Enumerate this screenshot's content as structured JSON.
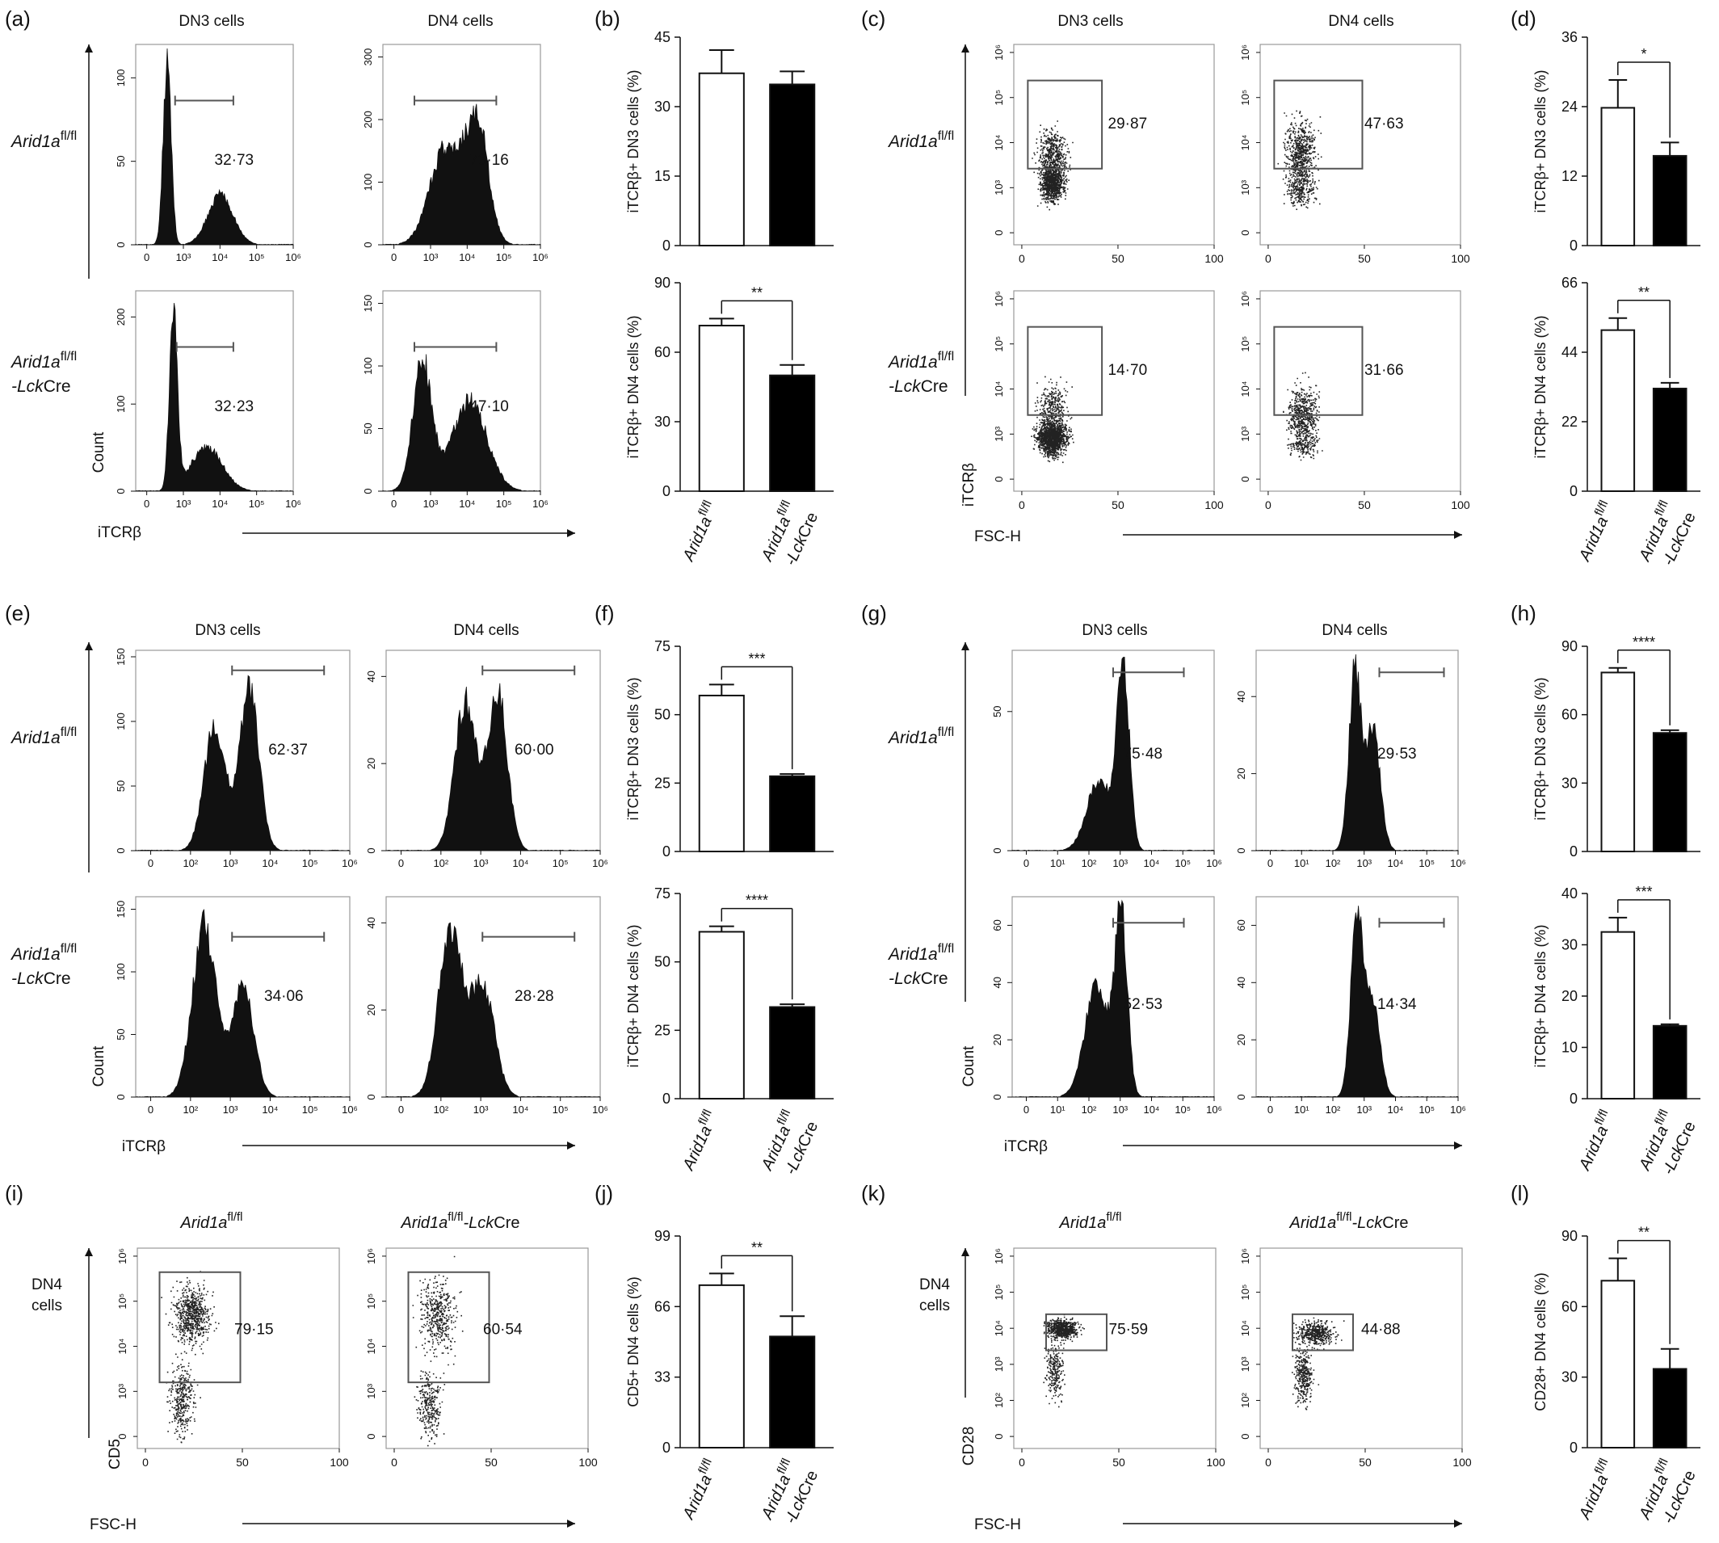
{
  "figure": {
    "panel_letters": [
      "(a)",
      "(b)",
      "(c)",
      "(d)",
      "(e)",
      "(f)",
      "(g)",
      "(h)",
      "(i)",
      "(j)",
      "(k)",
      "(l)"
    ],
    "groups": {
      "wt": {
        "main": "Arid1a",
        "sup": "fl/fl",
        "suffix": ""
      },
      "ko": {
        "main": "Arid1a",
        "sup": "fl/fl",
        "line2_italic": "-Lck",
        "line2": "Cre"
      }
    },
    "axis_labels": {
      "count": "Count",
      "itcrb": "iTCRβ",
      "fsch": "FSC-H",
      "cd5": "CD5",
      "cd28": "CD28",
      "dn4_cells_line1": "DN4",
      "dn4_cells_line2": "cells"
    },
    "column_titles": {
      "dn3": "DN3 cells",
      "dn4": "DN4 cells"
    },
    "colors": {
      "wt_bar": "#ffffff",
      "ko_bar": "#000000",
      "gate": "#555555",
      "histogram": "#111111"
    }
  },
  "chart_data": [
    {
      "id": "a",
      "type": "histogram",
      "columns": [
        "DN3 cells",
        "DN4 cells"
      ],
      "x_ticks": [
        "0",
        "10³",
        "10⁴",
        "10⁵",
        "10⁶"
      ],
      "plots": [
        {
          "col": "DN3 cells",
          "row": "Arid1afl/fl",
          "gate_pct": "32·73",
          "y_ticks": [
            "0",
            "50",
            "100"
          ],
          "ymax": 120
        },
        {
          "col": "DN4 cells",
          "row": "Arid1afl/fl",
          "gate_pct": "73·16",
          "y_ticks": [
            "0",
            "100",
            "200",
            "300"
          ],
          "ymax": 320
        },
        {
          "col": "DN3 cells",
          "row": "Arid1afl/fl-LckCre",
          "gate_pct": "32·23",
          "y_ticks": [
            "0",
            "100",
            "200"
          ],
          "ymax": 230
        },
        {
          "col": "DN4 cells",
          "row": "Arid1afl/fl-LckCre",
          "gate_pct": "47·10",
          "y_ticks": [
            "0",
            "50",
            "100",
            "150"
          ],
          "ymax": 160
        }
      ]
    },
    {
      "id": "b",
      "type": "bar",
      "categories": [
        "Arid1afl/fl",
        "Arid1afl/fl-LckCre"
      ],
      "charts": [
        {
          "ylabel": "iTCRβ+ DN3 cells (%)",
          "y_ticks": [
            0,
            15,
            30,
            45
          ],
          "ylim": [
            0,
            45
          ],
          "values": [
            37.2,
            34.8
          ],
          "errors": [
            5,
            2.8
          ],
          "sig": ""
        },
        {
          "ylabel": "iTCRβ+ DN4 cells (%)",
          "y_ticks": [
            0,
            30,
            60,
            90
          ],
          "ylim": [
            0,
            90
          ],
          "values": [
            71.5,
            50
          ],
          "errors": [
            3,
            4.5
          ],
          "sig": "**"
        }
      ]
    },
    {
      "id": "c",
      "type": "scatter",
      "x_ticks": [
        "0",
        "50",
        "100"
      ],
      "y_ticks": [
        "0",
        "10³",
        "10⁴",
        "10⁵",
        "10⁶"
      ],
      "plots": [
        {
          "col": "DN3 cells",
          "row": "Arid1afl/fl",
          "gate_pct": "29·87"
        },
        {
          "col": "DN4 cells",
          "row": "Arid1afl/fl",
          "gate_pct": "47·63"
        },
        {
          "col": "DN3 cells",
          "row": "Arid1afl/fl-LckCre",
          "gate_pct": "14·70"
        },
        {
          "col": "DN4 cells",
          "row": "Arid1afl/fl-LckCre",
          "gate_pct": "31·66"
        }
      ]
    },
    {
      "id": "d",
      "type": "bar",
      "categories": [
        "Arid1afl/fl",
        "Arid1afl/fl-LckCre"
      ],
      "charts": [
        {
          "ylabel": "iTCRβ+ DN3 cells (%)",
          "y_ticks": [
            0,
            12,
            24,
            36
          ],
          "ylim": [
            0,
            36
          ],
          "values": [
            23.8,
            15.5
          ],
          "errors": [
            4.8,
            2.3
          ],
          "sig": "*"
        },
        {
          "ylabel": "iTCRβ+ DN4 cells (%)",
          "y_ticks": [
            0,
            22,
            44,
            66
          ],
          "ylim": [
            0,
            66
          ],
          "values": [
            51,
            32.5
          ],
          "errors": [
            3.8,
            1.8
          ],
          "sig": "**"
        }
      ]
    },
    {
      "id": "e",
      "type": "histogram",
      "x_ticks": [
        "0",
        "10²",
        "10³",
        "10⁴",
        "10⁵",
        "10⁶"
      ],
      "plots": [
        {
          "col": "DN3 cells",
          "row": "Arid1afl/fl",
          "gate_pct": "62·37",
          "y_ticks": [
            "0",
            "50",
            "100",
            "150"
          ],
          "ymax": 155
        },
        {
          "col": "DN4 cells",
          "row": "Arid1afl/fl",
          "gate_pct": "60·00",
          "y_ticks": [
            "0",
            "20",
            "40"
          ],
          "ymax": 46
        },
        {
          "col": "DN3 cells",
          "row": "Arid1afl/fl-LckCre",
          "gate_pct": "34·06",
          "y_ticks": [
            "0",
            "50",
            "100",
            "150"
          ],
          "ymax": 160
        },
        {
          "col": "DN4 cells",
          "row": "Arid1afl/fl-LckCre",
          "gate_pct": "28·28",
          "y_ticks": [
            "0",
            "20",
            "40"
          ],
          "ymax": 46
        }
      ]
    },
    {
      "id": "f",
      "type": "bar",
      "categories": [
        "Arid1afl/fl",
        "Arid1afl/fl-LckCre"
      ],
      "charts": [
        {
          "ylabel": "iTCRβ+ DN3 cells (%)",
          "y_ticks": [
            0,
            25,
            50,
            75
          ],
          "ylim": [
            0,
            75
          ],
          "values": [
            57,
            27.5
          ],
          "errors": [
            4,
            0.8
          ],
          "sig": "***"
        },
        {
          "ylabel": "iTCRβ+ DN4 cells (%)",
          "y_ticks": [
            0,
            25,
            50,
            75
          ],
          "ylim": [
            0,
            75
          ],
          "values": [
            61,
            33.5
          ],
          "errors": [
            2,
            1
          ],
          "sig": "****"
        }
      ]
    },
    {
      "id": "g",
      "type": "histogram",
      "x_ticks": [
        "0",
        "10¹",
        "10²",
        "10³",
        "10⁴",
        "10⁵",
        "10⁶"
      ],
      "plots": [
        {
          "col": "DN3 cells",
          "row": "Arid1afl/fl",
          "gate_pct": "75·48",
          "y_ticks": [
            "0",
            "50"
          ],
          "ymax": 72
        },
        {
          "col": "DN4 cells",
          "row": "Arid1afl/fl",
          "gate_pct": "29·53",
          "y_ticks": [
            "0",
            "20",
            "40"
          ],
          "ymax": 52
        },
        {
          "col": "DN3 cells",
          "row": "Arid1afl/fl-LckCre",
          "gate_pct": "52·53",
          "y_ticks": [
            "0",
            "20",
            "40",
            "60"
          ],
          "ymax": 70
        },
        {
          "col": "DN4 cells",
          "row": "Arid1afl/fl-LckCre",
          "gate_pct": "14·34",
          "y_ticks": [
            "0",
            "20",
            "40",
            "60"
          ],
          "ymax": 70
        }
      ]
    },
    {
      "id": "h",
      "type": "bar",
      "categories": [
        "Arid1afl/fl",
        "Arid1afl/fl-LckCre"
      ],
      "charts": [
        {
          "ylabel": "iTCRβ+ DN3 cells (%)",
          "y_ticks": [
            0,
            30,
            60,
            90
          ],
          "ylim": [
            0,
            90
          ],
          "values": [
            78.5,
            52
          ],
          "errors": [
            2,
            1.2
          ],
          "sig": "****"
        },
        {
          "ylabel": "iTCRβ+ DN4 cells (%)",
          "y_ticks": [
            0,
            10,
            20,
            30,
            40
          ],
          "ylim": [
            0,
            40
          ],
          "values": [
            32.5,
            14.2
          ],
          "errors": [
            2.8,
            0.3
          ],
          "sig": "***"
        }
      ]
    },
    {
      "id": "i",
      "type": "scatter",
      "x_ticks": [
        "0",
        "50",
        "100"
      ],
      "y_ticks": [
        "0",
        "10³",
        "10⁴",
        "10⁵",
        "10⁶"
      ],
      "plots": [
        {
          "col": "Arid1afl/fl",
          "gate_pct": "79·15"
        },
        {
          "col": "Arid1afl/fl-LckCre",
          "gate_pct": "60·54"
        }
      ]
    },
    {
      "id": "j",
      "type": "bar",
      "categories": [
        "Arid1afl/fl",
        "Arid1afl/fl-LckCre"
      ],
      "charts": [
        {
          "ylabel": "CD5+ DN4 cells (%)",
          "y_ticks": [
            0,
            33,
            66,
            99
          ],
          "ylim": [
            0,
            99
          ],
          "values": [
            76,
            52
          ],
          "errors": [
            5.5,
            9.5
          ],
          "sig": "**"
        }
      ]
    },
    {
      "id": "k",
      "type": "scatter",
      "x_ticks": [
        "0",
        "50",
        "100"
      ],
      "y_ticks": [
        "0",
        "10²",
        "10³",
        "10⁴",
        "10⁵",
        "10⁶"
      ],
      "plots": [
        {
          "col": "Arid1afl/fl",
          "gate_pct": "75·59"
        },
        {
          "col": "Arid1afl/fl-LckCre",
          "gate_pct": "44·88"
        }
      ]
    },
    {
      "id": "l",
      "type": "bar",
      "categories": [
        "Arid1afl/fl",
        "Arid1afl/fl-LckCre"
      ],
      "charts": [
        {
          "ylabel": "CD28+ DN4 cells (%)",
          "y_ticks": [
            0,
            30,
            60,
            90
          ],
          "ylim": [
            0,
            90
          ],
          "values": [
            71,
            33.5
          ],
          "errors": [
            9.5,
            8.5
          ],
          "sig": "**"
        }
      ]
    }
  ]
}
